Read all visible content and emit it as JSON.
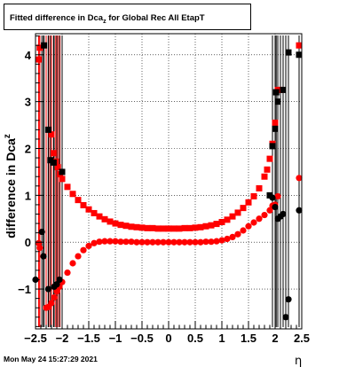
{
  "chart_data": {
    "type": "scatter",
    "title_main": "Fitted difference in Dca",
    "title_sub": "z",
    "title_rest": " for Global Rec All EtapT",
    "ylabel_main": "difference in Dca",
    "ylabel_sub": "z",
    "xlabel": "η",
    "xlim": [
      -2.5,
      2.5
    ],
    "ylim": [
      -1.85,
      4.45
    ],
    "xticks": [
      "−2.5",
      "−2",
      "−1.5",
      "−1",
      "−0.5",
      "0",
      "0.5",
      "1",
      "1.5",
      "2",
      "2.5"
    ],
    "yticks": [
      "−1",
      "0",
      "1",
      "2",
      "3",
      "4"
    ],
    "grid": true,
    "series": [
      {
        "color": "#ff0000",
        "marker": "square",
        "points": [
          [
            -2.44,
            3.9
          ],
          [
            -2.42,
            4.15
          ],
          [
            -2.2,
            2.3
          ],
          [
            -2.16,
            1.9
          ],
          [
            -2.12,
            1.72
          ],
          [
            -2.08,
            1.6
          ],
          [
            -2.04,
            1.45
          ],
          [
            -2.0,
            1.35
          ],
          [
            -1.9,
            1.18
          ],
          [
            -1.8,
            1.03
          ],
          [
            -1.7,
            0.9
          ],
          [
            -1.6,
            0.79
          ],
          [
            -1.5,
            0.7
          ],
          [
            -1.4,
            0.62
          ],
          [
            -1.3,
            0.55
          ],
          [
            -1.2,
            0.49
          ],
          [
            -1.1,
            0.44
          ],
          [
            -1.0,
            0.4
          ],
          [
            -0.9,
            0.37
          ],
          [
            -0.8,
            0.35
          ],
          [
            -0.7,
            0.33
          ],
          [
            -0.6,
            0.32
          ],
          [
            -0.5,
            0.31
          ],
          [
            -0.4,
            0.3
          ],
          [
            -0.3,
            0.3
          ],
          [
            -0.2,
            0.29
          ],
          [
            -0.1,
            0.29
          ],
          [
            0.0,
            0.29
          ],
          [
            0.1,
            0.29
          ],
          [
            0.2,
            0.29
          ],
          [
            0.3,
            0.3
          ],
          [
            0.4,
            0.3
          ],
          [
            0.5,
            0.31
          ],
          [
            0.6,
            0.32
          ],
          [
            0.7,
            0.34
          ],
          [
            0.8,
            0.36
          ],
          [
            0.9,
            0.39
          ],
          [
            1.0,
            0.43
          ],
          [
            1.1,
            0.48
          ],
          [
            1.2,
            0.55
          ],
          [
            1.3,
            0.63
          ],
          [
            1.4,
            0.73
          ],
          [
            1.5,
            0.85
          ],
          [
            1.6,
            0.98
          ],
          [
            1.7,
            1.15
          ],
          [
            1.8,
            1.4
          ],
          [
            1.85,
            1.55
          ],
          [
            1.9,
            1.78
          ],
          [
            1.95,
            2.1
          ],
          [
            2.0,
            2.55
          ],
          [
            2.05,
            3.25
          ],
          [
            2.1,
            3.25
          ],
          [
            2.45,
            4.2
          ]
        ]
      },
      {
        "color": "#ff0000",
        "marker": "circle",
        "points": [
          [
            -2.44,
            -0.02
          ],
          [
            -2.42,
            -0.12
          ],
          [
            -2.3,
            -1.4
          ],
          [
            -2.25,
            -1.38
          ],
          [
            -2.2,
            -1.3
          ],
          [
            -2.15,
            -1.18
          ],
          [
            -2.1,
            -1.05
          ],
          [
            -2.05,
            -0.95
          ],
          [
            -2.0,
            -0.85
          ],
          [
            -1.9,
            -0.65
          ],
          [
            -1.8,
            -0.45
          ],
          [
            -1.7,
            -0.3
          ],
          [
            -1.6,
            -0.17
          ],
          [
            -1.5,
            -0.08
          ],
          [
            -1.4,
            -0.02
          ],
          [
            -1.3,
            0.01
          ],
          [
            -1.2,
            0.02
          ],
          [
            -1.1,
            0.02
          ],
          [
            -1.0,
            0.02
          ],
          [
            -0.9,
            0.01
          ],
          [
            -0.8,
            0.01
          ],
          [
            -0.7,
            0.01
          ],
          [
            -0.6,
            0.0
          ],
          [
            -0.5,
            0.0
          ],
          [
            -0.4,
            0.0
          ],
          [
            -0.3,
            0.0
          ],
          [
            -0.2,
            0.0
          ],
          [
            -0.1,
            0.0
          ],
          [
            0.0,
            0.0
          ],
          [
            0.1,
            0.0
          ],
          [
            0.2,
            0.0
          ],
          [
            0.3,
            0.0
          ],
          [
            0.4,
            0.0
          ],
          [
            0.5,
            0.0
          ],
          [
            0.6,
            0.0
          ],
          [
            0.7,
            0.01
          ],
          [
            0.8,
            0.01
          ],
          [
            0.9,
            0.02
          ],
          [
            1.0,
            0.04
          ],
          [
            1.1,
            0.07
          ],
          [
            1.2,
            0.11
          ],
          [
            1.3,
            0.17
          ],
          [
            1.4,
            0.25
          ],
          [
            1.5,
            0.34
          ],
          [
            1.6,
            0.42
          ],
          [
            1.7,
            0.5
          ],
          [
            1.8,
            0.58
          ],
          [
            1.9,
            0.68
          ],
          [
            1.95,
            0.78
          ],
          [
            2.0,
            0.8
          ],
          [
            2.05,
            0.98
          ],
          [
            2.45,
            1.37
          ]
        ]
      },
      {
        "color": "#000000",
        "marker": "square",
        "points": [
          [
            -2.34,
            4.2
          ],
          [
            -2.26,
            2.4
          ],
          [
            -2.22,
            1.75
          ],
          [
            -2.16,
            1.7
          ],
          [
            -2.0,
            1.5
          ],
          [
            1.9,
            1.0
          ],
          [
            1.95,
            2.05
          ],
          [
            2.0,
            2.42
          ],
          [
            2.02,
            3.2
          ],
          [
            2.05,
            3.0
          ],
          [
            2.15,
            3.25
          ],
          [
            2.25,
            4.05
          ],
          [
            2.45,
            4.0
          ]
        ]
      },
      {
        "color": "#000000",
        "marker": "circle",
        "points": [
          [
            -2.5,
            -0.8
          ],
          [
            -2.38,
            0.22
          ],
          [
            -2.35,
            -0.3
          ],
          [
            -2.26,
            -1.0
          ],
          [
            -2.15,
            -0.95
          ],
          [
            -2.1,
            -0.9
          ],
          [
            -2.05,
            -0.8
          ],
          [
            1.95,
            0.95
          ],
          [
            2.0,
            0.75
          ],
          [
            2.05,
            0.5
          ],
          [
            2.1,
            0.55
          ],
          [
            2.15,
            0.6
          ],
          [
            2.2,
            -1.6
          ],
          [
            2.25,
            -1.22
          ],
          [
            2.45,
            0.68
          ]
        ]
      }
    ]
  },
  "footer": {
    "timestamp": "Mon May 24 15:27:29 2021"
  }
}
